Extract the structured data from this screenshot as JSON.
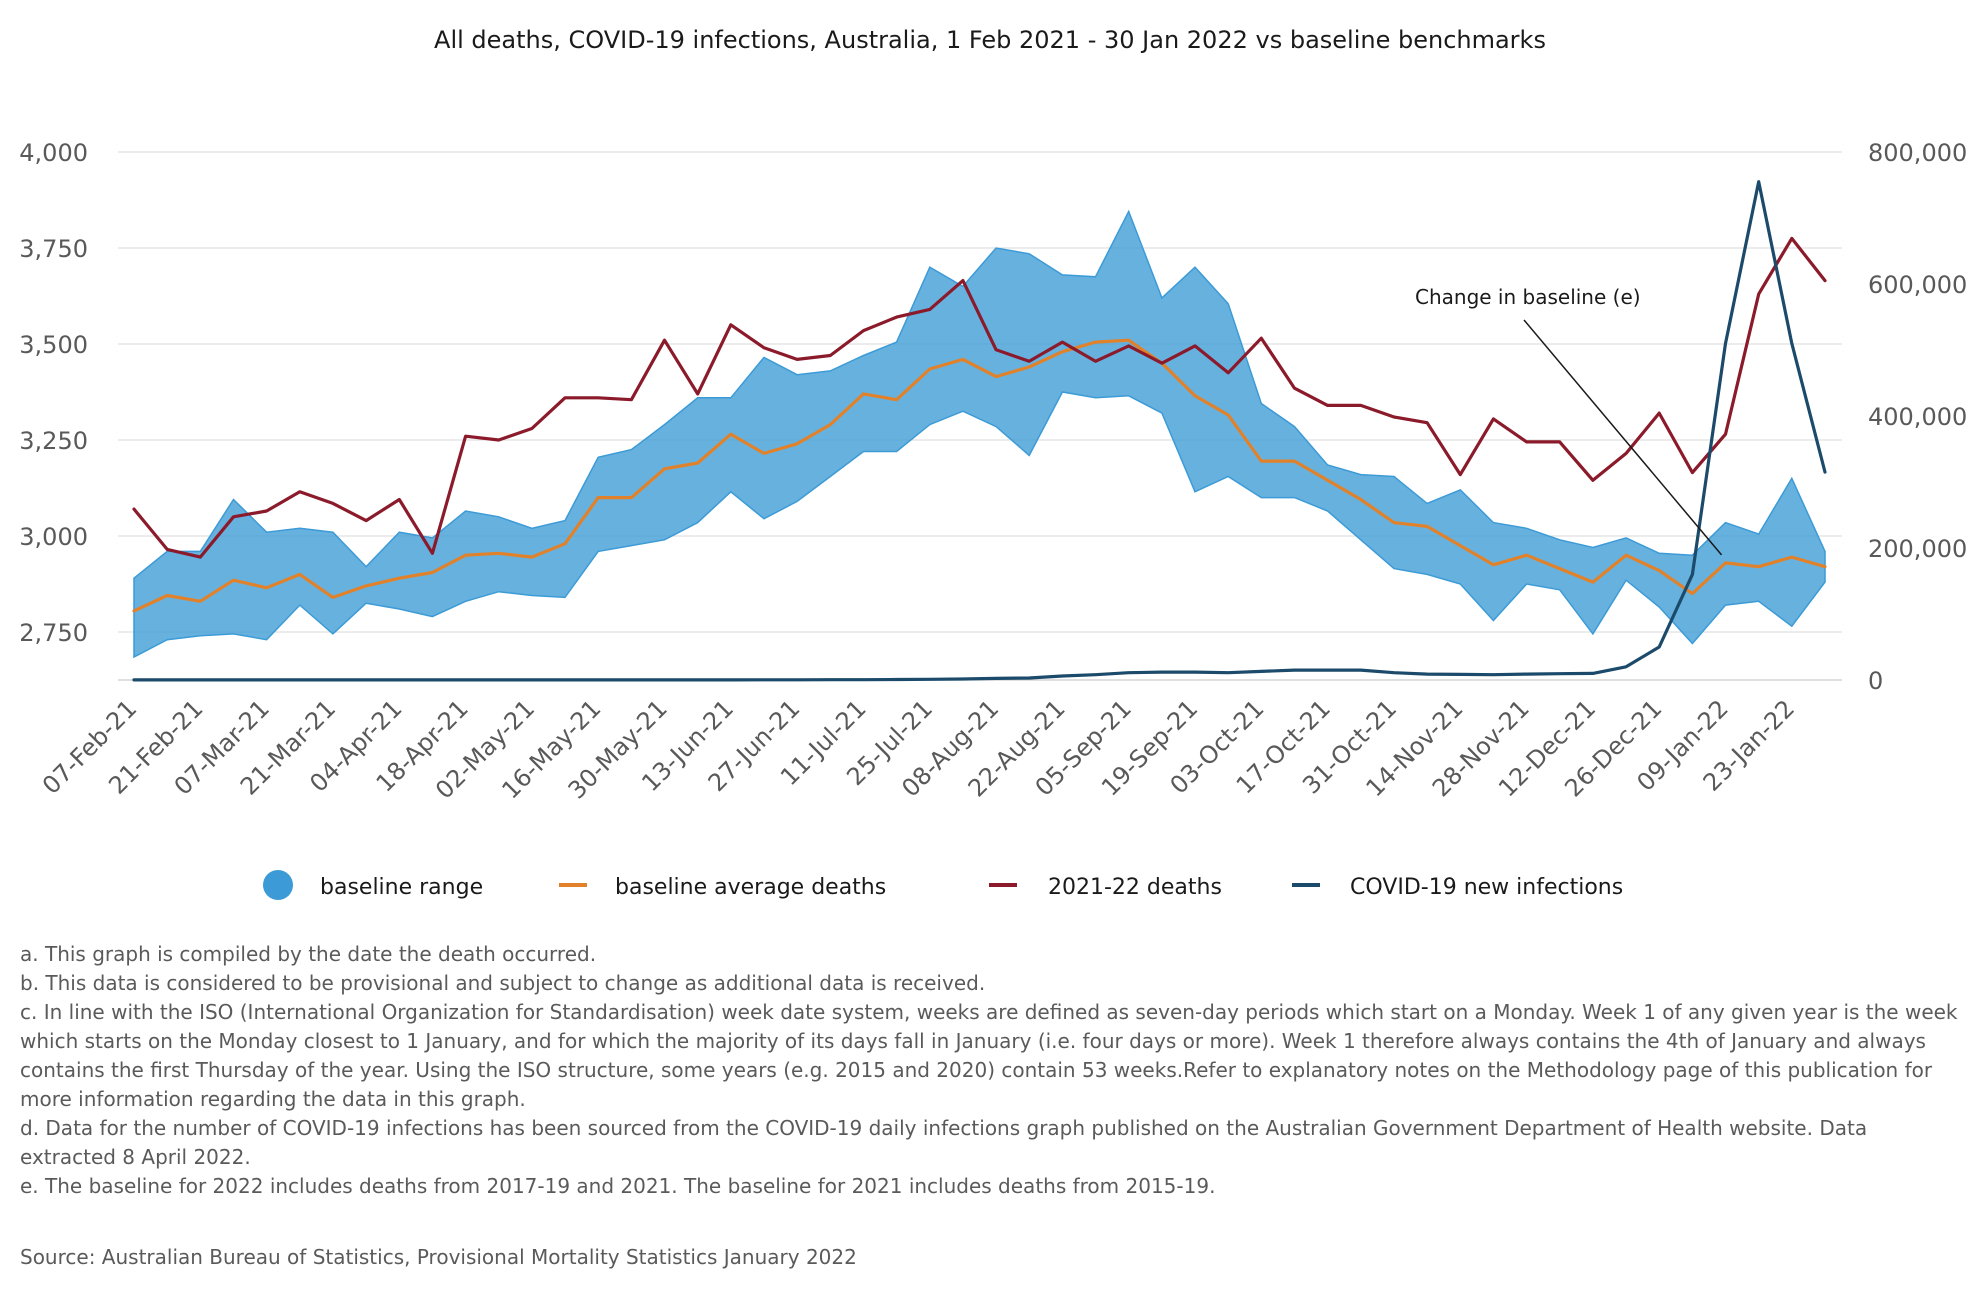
{
  "chart_data": {
    "type": "line",
    "title": "All deaths, COVID-19 infections, Australia, 1 Feb 2021 - 30 Jan 2022 vs baseline benchmarks",
    "y_left": {
      "ylim": [
        2625,
        4000
      ],
      "ticks": [
        "2,750",
        "3,000",
        "3,250",
        "3,500",
        "3,750",
        "4,000"
      ],
      "tick_values": [
        2750,
        3000,
        3250,
        3500,
        3750,
        4000
      ]
    },
    "y_right": {
      "ylim": [
        0,
        800000
      ],
      "ticks": [
        "0",
        "200,000",
        "400,000",
        "600,000",
        "800,000"
      ],
      "tick_values": [
        0,
        200000,
        400000,
        600000,
        800000
      ]
    },
    "x": [
      "07-Feb-21",
      "14-Feb-21",
      "21-Feb-21",
      "28-Feb-21",
      "07-Mar-21",
      "14-Mar-21",
      "21-Mar-21",
      "28-Mar-21",
      "04-Apr-21",
      "11-Apr-21",
      "18-Apr-21",
      "25-Apr-21",
      "02-May-21",
      "09-May-21",
      "16-May-21",
      "23-May-21",
      "30-May-21",
      "06-Jun-21",
      "13-Jun-21",
      "20-Jun-21",
      "27-Jun-21",
      "04-Jul-21",
      "11-Jul-21",
      "18-Jul-21",
      "25-Jul-21",
      "01-Aug-21",
      "08-Aug-21",
      "15-Aug-21",
      "22-Aug-21",
      "29-Aug-21",
      "05-Sep-21",
      "12-Sep-21",
      "19-Sep-21",
      "26-Sep-21",
      "03-Oct-21",
      "10-Oct-21",
      "17-Oct-21",
      "24-Oct-21",
      "31-Oct-21",
      "07-Nov-21",
      "14-Nov-21",
      "21-Nov-21",
      "28-Nov-21",
      "05-Dec-21",
      "12-Dec-21",
      "19-Dec-21",
      "26-Dec-21",
      "02-Jan-22",
      "09-Jan-22",
      "16-Jan-22",
      "23-Jan-22",
      "30-Jan-22"
    ],
    "x_tick_labels": [
      "07-Feb-21",
      "21-Feb-21",
      "07-Mar-21",
      "21-Mar-21",
      "04-Apr-21",
      "18-Apr-21",
      "02-May-21",
      "16-May-21",
      "30-May-21",
      "13-Jun-21",
      "27-Jun-21",
      "11-Jul-21",
      "25-Jul-21",
      "08-Aug-21",
      "22-Aug-21",
      "05-Sep-21",
      "19-Sep-21",
      "03-Oct-21",
      "17-Oct-21",
      "31-Oct-21",
      "14-Nov-21",
      "28-Nov-21",
      "12-Dec-21",
      "26-Dec-21",
      "09-Jan-22",
      "23-Jan-22"
    ],
    "baseline_range": {
      "name": "baseline range",
      "color": "#3c9bd6",
      "upper": [
        2890,
        2960,
        2960,
        3095,
        3010,
        3020,
        3010,
        2920,
        3010,
        2995,
        3065,
        3050,
        3020,
        3040,
        3205,
        3225,
        3290,
        3360,
        3360,
        3465,
        3420,
        3430,
        3470,
        3505,
        3700,
        3650,
        3750,
        3735,
        3680,
        3675,
        3845,
        3620,
        3700,
        3605,
        3345,
        3285,
        3185,
        3160,
        3155,
        3085,
        3120,
        3035,
        3020,
        2990,
        2970,
        2995,
        2955,
        2950,
        3035,
        3005,
        3150,
        2960
      ],
      "lower": [
        2685,
        2730,
        2740,
        2745,
        2730,
        2820,
        2745,
        2825,
        2810,
        2790,
        2830,
        2855,
        2845,
        2840,
        2960,
        2975,
        2990,
        3035,
        3115,
        3045,
        3090,
        3155,
        3220,
        3220,
        3290,
        3325,
        3285,
        3210,
        3375,
        3360,
        3365,
        3320,
        3115,
        3155,
        3100,
        3100,
        3065,
        2990,
        2915,
        2900,
        2875,
        2780,
        2875,
        2860,
        2745,
        2885,
        2815,
        2720,
        2820,
        2830,
        2765,
        2880
      ]
    },
    "series": [
      {
        "name": "baseline average deaths",
        "axis": "left",
        "color": "#e1822a",
        "values": [
          2805,
          2845,
          2830,
          2885,
          2865,
          2900,
          2840,
          2870,
          2890,
          2905,
          2950,
          2955,
          2945,
          2980,
          3100,
          3100,
          3175,
          3190,
          3265,
          3215,
          3240,
          3290,
          3370,
          3355,
          3435,
          3460,
          3415,
          3440,
          3480,
          3505,
          3510,
          3450,
          3365,
          3315,
          3195,
          3195,
          3145,
          3095,
          3035,
          3025,
          2975,
          2925,
          2950,
          2915,
          2880,
          2950,
          2910,
          2850,
          2930,
          2920,
          2945,
          2920
        ]
      },
      {
        "name": "2021-22 deaths",
        "axis": "left",
        "color": "#8b1a2b",
        "values": [
          3070,
          2965,
          2945,
          3050,
          3065,
          3115,
          3085,
          3040,
          3095,
          2955,
          3260,
          3250,
          3280,
          3360,
          3360,
          3355,
          3510,
          3370,
          3550,
          3490,
          3460,
          3470,
          3535,
          3570,
          3590,
          3665,
          3485,
          3455,
          3505,
          3455,
          3495,
          3450,
          3495,
          3425,
          3515,
          3385,
          3340,
          3340,
          3310,
          3295,
          3160,
          3305,
          3245,
          3245,
          3145,
          3215,
          3320,
          3165,
          3265,
          3630,
          3775,
          3665
        ]
      },
      {
        "name": "COVID-19 new infections",
        "axis": "right",
        "color": "#1b4a6b",
        "values": [
          200,
          200,
          200,
          200,
          200,
          200,
          200,
          200,
          200,
          200,
          200,
          200,
          200,
          200,
          200,
          200,
          200,
          200,
          200,
          300,
          300,
          400,
          500,
          700,
          1000,
          1500,
          2500,
          3000,
          6000,
          8000,
          11000,
          12000,
          12000,
          11000,
          13000,
          15000,
          15000,
          15000,
          11000,
          9000,
          8500,
          8000,
          9000,
          9500,
          10000,
          20000,
          50000,
          160000,
          510000,
          755000,
          510000,
          315000
        ]
      }
    ],
    "annotation": {
      "text": "Change in baseline (e)",
      "target_index": 48
    },
    "legend": {
      "placement": "bottom",
      "items": [
        "baseline range",
        "baseline average deaths",
        "2021-22 deaths",
        "COVID-19 new infections"
      ]
    },
    "grid": true
  },
  "notes": [
    "a. This graph is compiled by the date the death occurred.",
    "b. This data is considered to be provisional and subject to change as additional data is received.",
    "c. In line with the ISO (International Organization for Standardisation) week date system, weeks are defined as seven-day periods which start on a Monday. Week 1 of any given year is the week which starts on the Monday closest to 1 January, and for which the majority of its days fall in January (i.e. four days or more). Week 1 therefore always contains the 4th of January and always contains the first Thursday of the year. Using the ISO structure, some years (e.g. 2015 and 2020) contain 53 weeks.Refer to explanatory notes on the Methodology page of this publication for more information regarding the data in this graph.",
    "d. Data for the number of COVID-19 infections has been sourced from the COVID-19 daily infections graph published on the Australian Government Department of Health website. Data extracted 8 April 2022.",
    "e. The baseline for 2022 includes deaths from 2017-19 and 2021. The baseline for 2021 includes deaths from 2015-19."
  ],
  "source": "Source: Australian Bureau of Statistics, Provisional Mortality Statistics January 2022"
}
